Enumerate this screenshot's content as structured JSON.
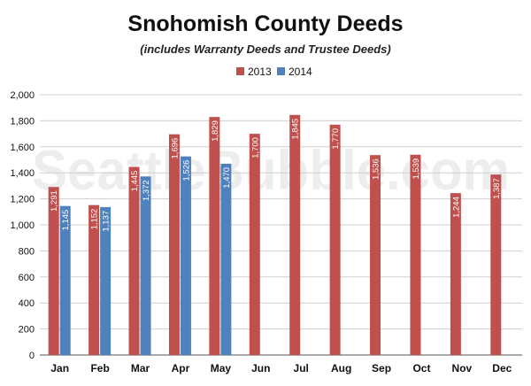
{
  "chart_data": {
    "type": "bar",
    "title": "Snohomish County Deeds",
    "subtitle": "(includes Warranty Deeds and Trustee Deeds)",
    "watermark": "SeattleBubble.com",
    "categories": [
      "Jan",
      "Feb",
      "Mar",
      "Apr",
      "May",
      "Jun",
      "Jul",
      "Aug",
      "Sep",
      "Oct",
      "Nov",
      "Dec"
    ],
    "series": [
      {
        "name": "2013",
        "color": "#c0504d",
        "values": [
          1291,
          1152,
          1445,
          1696,
          1829,
          1700,
          1845,
          1770,
          1536,
          1539,
          1244,
          1387
        ]
      },
      {
        "name": "2014",
        "color": "#4f81bd",
        "values": [
          1145,
          1137,
          1372,
          1526,
          1470,
          null,
          null,
          null,
          null,
          null,
          null,
          null
        ]
      }
    ],
    "data_labels": [
      [
        "1,291",
        "1,152",
        "1,445",
        "1,696",
        "1,829",
        "1,700",
        "1,845",
        "1,770",
        "1,536",
        "1,539",
        "1,244",
        "1,387"
      ],
      [
        "1,145",
        "1,137",
        "1,372",
        "1,526",
        "1,470"
      ]
    ],
    "yticks": [
      "0",
      "200",
      "400",
      "600",
      "800",
      "1,000",
      "1,200",
      "1,400",
      "1,600",
      "1,800",
      "2,000"
    ],
    "ylim": [
      0,
      2000
    ],
    "grid": true,
    "legend_position": "top-center",
    "xlabel": "",
    "ylabel": ""
  }
}
